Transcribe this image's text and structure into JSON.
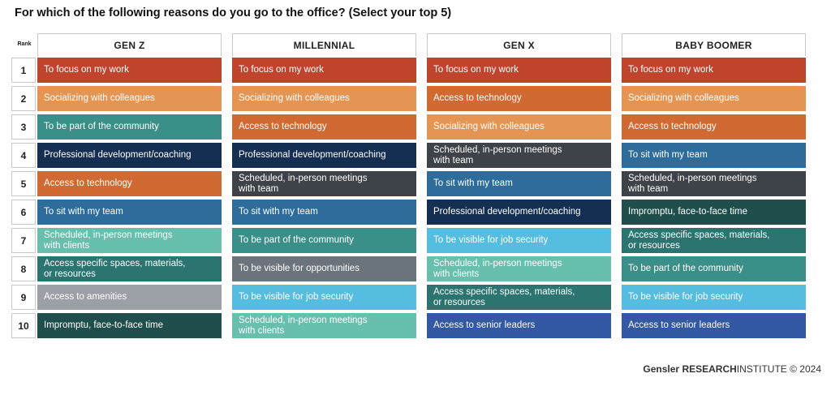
{
  "chart_data": {
    "type": "table",
    "title": "For which of the following reasons do you go to the office? (Select your top 5)",
    "rank_label": "Rank",
    "ranks": [
      "1",
      "2",
      "3",
      "4",
      "5",
      "6",
      "7",
      "8",
      "9",
      "10"
    ],
    "generations": [
      {
        "name": "GEN Z",
        "items": [
          {
            "label": "To focus on my work",
            "color": "#c0432b"
          },
          {
            "label": "Socializing with colleagues",
            "color": "#e49553"
          },
          {
            "label": "To be part of the community",
            "color": "#3a8f88"
          },
          {
            "label": "Professional development/coaching",
            "color": "#142f52"
          },
          {
            "label": "Access to technology",
            "color": "#d06a32"
          },
          {
            "label": "To sit with my team",
            "color": "#2e6d9b"
          },
          {
            "label": "Scheduled, in-person meetings\n with clients",
            "color": "#68bfad"
          },
          {
            "label": "Access specific spaces, materials,\nor resources",
            "color": "#2b7470"
          },
          {
            "label": "Access to amenities",
            "color": "#9aa0a6"
          },
          {
            "label": "Impromptu, face-to-face time",
            "color": "#1f4e4c"
          }
        ]
      },
      {
        "name": "MILLENNIAL",
        "items": [
          {
            "label": "To focus on my work",
            "color": "#c0432b"
          },
          {
            "label": "Socializing with colleagues",
            "color": "#e49553"
          },
          {
            "label": "Access to technology",
            "color": "#d06a32"
          },
          {
            "label": "Professional development/coaching",
            "color": "#142f52"
          },
          {
            "label": "Scheduled, in-person meetings\n with team",
            "color": "#3d4348"
          },
          {
            "label": "To sit with my team",
            "color": "#2e6d9b"
          },
          {
            "label": "To be part of the community",
            "color": "#3a8f88"
          },
          {
            "label": "To be visible for opportunities",
            "color": "#6c747b"
          },
          {
            "label": "To be visible for job security",
            "color": "#55bde0"
          },
          {
            "label": "Scheduled, in-person meetings\nwith clients",
            "color": "#68bfad"
          }
        ]
      },
      {
        "name": "GEN X",
        "items": [
          {
            "label": "To focus on my work",
            "color": "#c0432b"
          },
          {
            "label": "Access to technology",
            "color": "#d06a32"
          },
          {
            "label": "Socializing with colleagues",
            "color": "#e49553"
          },
          {
            "label": "Scheduled, in-person meetings\nwith team",
            "color": "#3d4348"
          },
          {
            "label": "To sit with my team",
            "color": "#2e6d9b"
          },
          {
            "label": "Professional development/coaching",
            "color": "#142f52"
          },
          {
            "label": "To be visible for job security",
            "color": "#55bde0"
          },
          {
            "label": "Scheduled, in-person meetings\nwith clients",
            "color": "#68bfad"
          },
          {
            "label": "Access specific spaces, materials,\nor resources",
            "color": "#2b7470"
          },
          {
            "label": "Access to senior leaders",
            "color": "#3358a4"
          }
        ]
      },
      {
        "name": "BABY BOOMER",
        "items": [
          {
            "label": "To focus on my work",
            "color": "#c0432b"
          },
          {
            "label": "Socializing with colleagues",
            "color": "#e49553"
          },
          {
            "label": "Access to technology",
            "color": "#d06a32"
          },
          {
            "label": "To sit with my team",
            "color": "#2e6d9b"
          },
          {
            "label": "Scheduled, in-person meetings\nwith team",
            "color": "#3d4348"
          },
          {
            "label": "Impromptu, face-to-face time",
            "color": "#1f4e4c"
          },
          {
            "label": "Access specific spaces, materials,\nor resources",
            "color": "#2b7470"
          },
          {
            "label": "To be part of the community",
            "color": "#3a8f88"
          },
          {
            "label": "To be visible for job security",
            "color": "#55bde0"
          },
          {
            "label": "Access to senior leaders",
            "color": "#3358a4"
          }
        ]
      }
    ]
  },
  "footer": {
    "brand": "Gensler",
    "research": "RESEARCH",
    "institute": "INSTITUTE",
    "copyright": "© 2024"
  }
}
